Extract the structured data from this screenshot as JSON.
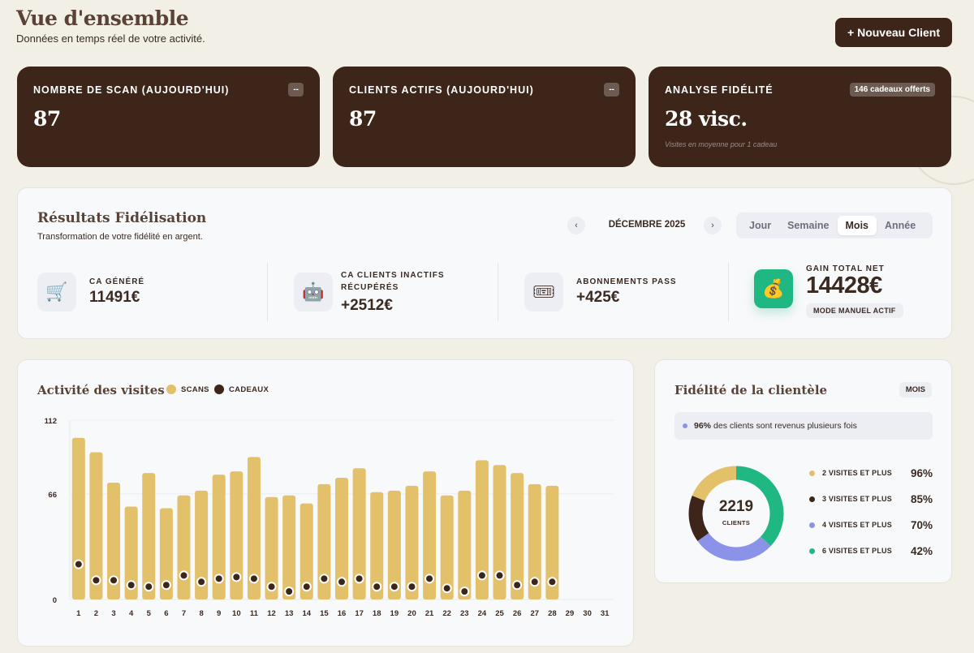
{
  "header": {
    "title": "Vue d'ensemble",
    "subtitle": "Données en temps réel de votre activité.",
    "new_client_button": "+ Nouveau Client"
  },
  "stats": [
    {
      "label": "NOMBRE DE SCAN (AUJOURD'HUI)",
      "value": "87",
      "badge": "--"
    },
    {
      "label": "CLIENTS ACTIFS (AUJOURD'HUI)",
      "value": "87",
      "badge": "--"
    },
    {
      "label": "ANALYSE FIDÉLITÉ",
      "value": "28 visc.",
      "badge": "146 cadeaux offerts",
      "foot": "Visites en moyenne pour 1 cadeau"
    }
  ],
  "results": {
    "title": "Résultats Fidélisation",
    "subtitle": "Transformation de votre fidélité en argent.",
    "prev_icon": "chevron-left-icon",
    "next_icon": "chevron-right-icon",
    "prev_glyph": "‹",
    "next_glyph": "›",
    "period": "DÉCEMBRE 2025",
    "tabs": [
      {
        "label": "Jour",
        "active": false
      },
      {
        "label": "Semaine",
        "active": false
      },
      {
        "label": "Mois",
        "active": true
      },
      {
        "label": "Année",
        "active": false
      }
    ],
    "metrics": [
      {
        "label_lines": [
          "CA GÉNÉRÉ"
        ],
        "value": "11491€",
        "icon": "shopping-cart-icon",
        "glyph": "🛒"
      },
      {
        "label_lines": [
          "CA CLIENTS INACTIFS",
          "RÉCUPÉRÉS"
        ],
        "value": "+2512€",
        "icon": "robot-icon",
        "glyph": "🤖"
      },
      {
        "label_lines": [
          "ABONNEMENTS PASS"
        ],
        "value": "+425€",
        "icon": "ticket-icon",
        "glyph": "🎟"
      }
    ],
    "gain": {
      "label": "GAIN TOTAL NET",
      "value": "14428€",
      "badge": "MODE MANUEL ACTIF",
      "icon": "money-bag-icon",
      "glyph": "💰"
    }
  },
  "activity": {
    "title": "Activité des visites",
    "legend": [
      {
        "label": "SCANS",
        "color": "#e3c06a"
      },
      {
        "label": "CADEAUX",
        "color": "#3e2519"
      }
    ]
  },
  "chart_data": {
    "type": "bar",
    "x": [
      1,
      2,
      3,
      4,
      5,
      6,
      7,
      8,
      9,
      10,
      11,
      12,
      13,
      14,
      15,
      16,
      17,
      18,
      19,
      20,
      21,
      22,
      23,
      24,
      25,
      26,
      27,
      28,
      29,
      30,
      31
    ],
    "ylim": [
      0,
      112
    ],
    "yticks": [
      0,
      66,
      112
    ],
    "grid": true,
    "series": [
      {
        "name": "SCANS",
        "kind": "bar",
        "color": "#e3c06a",
        "values": [
          101,
          92,
          73,
          58,
          79,
          57,
          65,
          68,
          78,
          80,
          89,
          64,
          65,
          60,
          72,
          76,
          82,
          67,
          68,
          71,
          80,
          65,
          68,
          87,
          84,
          79,
          72,
          71,
          null,
          null,
          null
        ]
      },
      {
        "name": "CADEAUX",
        "kind": "point",
        "color": "#3e2519",
        "values": [
          22,
          12,
          12,
          9,
          8,
          9,
          15,
          11,
          13,
          14,
          13,
          8,
          5,
          8,
          13,
          11,
          13,
          8,
          8,
          8,
          13,
          7,
          5,
          15,
          15,
          9,
          11,
          11,
          null,
          null,
          null
        ]
      }
    ]
  },
  "fidelity": {
    "title": "Fidélité de la clientèle",
    "badge": "MOIS",
    "info_bold": "96%",
    "info_text": "des clients sont revenus plusieurs fois",
    "total": "2219",
    "total_label": "CLIENTS",
    "rows": [
      {
        "label": "2 VISITES ET PLUS",
        "pct": "96%",
        "color": "#e3c06a"
      },
      {
        "label": "3 VISITES ET PLUS",
        "pct": "85%",
        "color": "#3e2519"
      },
      {
        "label": "4 VISITES ET PLUS",
        "pct": "70%",
        "color": "#8b93e8"
      },
      {
        "label": "6 VISITES ET PLUS",
        "pct": "42%",
        "color": "#1fb883"
      }
    ],
    "donut_segments": [
      {
        "color": "#1fb883",
        "fraction": 0.37
      },
      {
        "color": "#8b93e8",
        "fraction": 0.28
      },
      {
        "color": "#3e2519",
        "fraction": 0.16
      },
      {
        "color": "#e3c06a",
        "fraction": 0.19
      }
    ]
  }
}
